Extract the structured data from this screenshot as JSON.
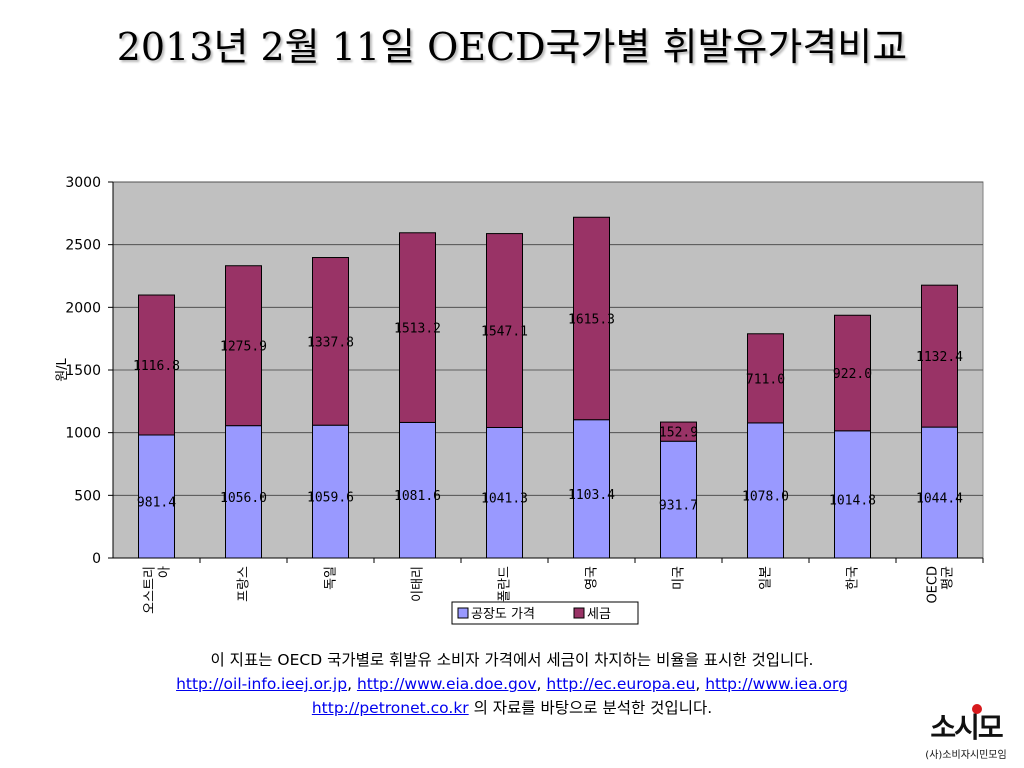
{
  "page": {
    "title": "2013년 2월 11일 OECD국가별 휘발유가격비교"
  },
  "caption": {
    "line1": "이 지표는 OECD 국가별로 휘발유 소비자 가격에서 세금이 차지하는 비율을 표시한 것입니다.",
    "links": [
      "http://oil-info.ieej.or.jp",
      "http://www.eia.doe.gov",
      "http://ec.europa.eu",
      "http://www.iea.org"
    ],
    "sep": ", ",
    "link5": "http://petronet.co.kr",
    "line3_suffix": " 의 자료를 바탕으로 분석한 것입니다."
  },
  "logo": {
    "main": "소시모",
    "sub": "(사)소비자시민모임"
  },
  "colors": {
    "factory": "#9999ff",
    "tax": "#993366",
    "plot_bg": "#c0c0c0"
  },
  "chart_data": {
    "type": "bar",
    "stacked": true,
    "ylabel": "원/L",
    "ylim": [
      0,
      3000
    ],
    "yticks": [
      0,
      500,
      1000,
      1500,
      2000,
      2500,
      3000
    ],
    "grid": true,
    "legend_position": "bottom",
    "categories": [
      "오스트리아",
      "프랑스",
      "독일",
      "이태리",
      "폴란드",
      "영국",
      "미국",
      "일본",
      "한국",
      "OECD평균"
    ],
    "category_lines": [
      [
        "오스트리",
        "아"
      ],
      [
        "프랑스"
      ],
      [
        "독일"
      ],
      [
        "이태리"
      ],
      [
        "폴란드"
      ],
      [
        "영국"
      ],
      [
        "미국"
      ],
      [
        "일본"
      ],
      [
        "한국"
      ],
      [
        "OECD",
        "평균"
      ]
    ],
    "series": [
      {
        "name": "공장도 가격",
        "values": [
          981.4,
          1056.0,
          1059.6,
          1081.6,
          1041.3,
          1103.4,
          931.7,
          1078.0,
          1014.8,
          1044.4
        ]
      },
      {
        "name": "세금",
        "values": [
          1116.8,
          1275.9,
          1337.8,
          1513.2,
          1547.1,
          1615.3,
          152.9,
          711.0,
          922.0,
          1132.4
        ]
      }
    ]
  }
}
